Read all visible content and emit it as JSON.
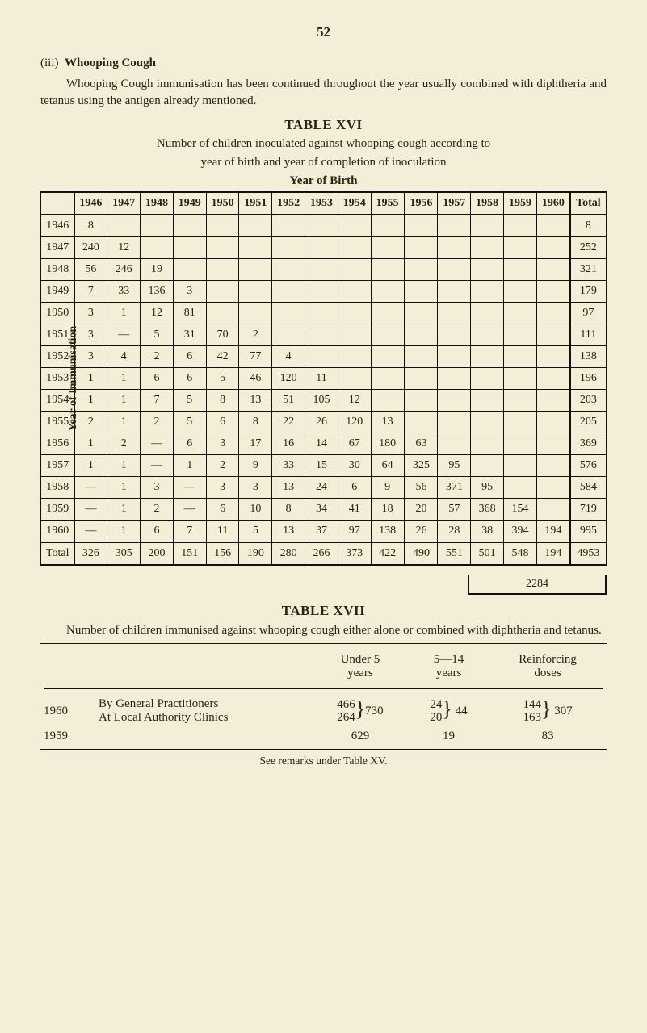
{
  "page_number": "52",
  "section_heading_num": "(iii)",
  "section_heading_text": "Whooping Cough",
  "intro_para": "Whooping Cough immunisation has been continued throughout the year usually combined with diphtheria and tetanus using the antigen already mentioned.",
  "table16": {
    "title": "TABLE XVI",
    "caption_l1": "Number of children inoculated against whooping cough according to",
    "caption_l2": "year of birth and year of completion of inoculation",
    "col_axis_label": "Year of Birth",
    "row_axis_label": "Year of Immunisation",
    "col_headers": [
      "1946",
      "1947",
      "1948",
      "1949",
      "1950",
      "1951",
      "1952",
      "1953",
      "1954",
      "1955",
      "1956",
      "1957",
      "1958",
      "1959",
      "1960",
      "Total"
    ],
    "row_labels": [
      "1946",
      "1947",
      "1948",
      "1949",
      "1950",
      "1951",
      "1952",
      "1953",
      "1954",
      "1955",
      "1956",
      "1957",
      "1958",
      "1959",
      "1960",
      "Total"
    ],
    "rows": [
      [
        "8",
        "",
        "",
        "",
        "",
        "",
        "",
        "",
        "",
        "",
        "",
        "",
        "",
        "",
        "",
        "8"
      ],
      [
        "240",
        "12",
        "",
        "",
        "",
        "",
        "",
        "",
        "",
        "",
        "",
        "",
        "",
        "",
        "",
        "252"
      ],
      [
        "56",
        "246",
        "19",
        "",
        "",
        "",
        "",
        "",
        "",
        "",
        "",
        "",
        "",
        "",
        "",
        "321"
      ],
      [
        "7",
        "33",
        "136",
        "3",
        "",
        "",
        "",
        "",
        "",
        "",
        "",
        "",
        "",
        "",
        "",
        "179"
      ],
      [
        "3",
        "1",
        "12",
        "81",
        "",
        "",
        "",
        "",
        "",
        "",
        "",
        "",
        "",
        "",
        "",
        "97"
      ],
      [
        "3",
        "—",
        "5",
        "31",
        "70",
        "2",
        "",
        "",
        "",
        "",
        "",
        "",
        "",
        "",
        "",
        "111"
      ],
      [
        "3",
        "4",
        "2",
        "6",
        "42",
        "77",
        "4",
        "",
        "",
        "",
        "",
        "",
        "",
        "",
        "",
        "138"
      ],
      [
        "1",
        "1",
        "6",
        "6",
        "5",
        "46",
        "120",
        "11",
        "",
        "",
        "",
        "",
        "",
        "",
        "",
        "196"
      ],
      [
        "1",
        "1",
        "7",
        "5",
        "8",
        "13",
        "51",
        "105",
        "12",
        "",
        "",
        "",
        "",
        "",
        "",
        "203"
      ],
      [
        "2",
        "1",
        "2",
        "5",
        "6",
        "8",
        "22",
        "26",
        "120",
        "13",
        "",
        "",
        "",
        "",
        "",
        "205"
      ],
      [
        "1",
        "2",
        "—",
        "6",
        "3",
        "17",
        "16",
        "14",
        "67",
        "180",
        "63",
        "",
        "",
        "",
        "",
        "369"
      ],
      [
        "1",
        "1",
        "—",
        "1",
        "2",
        "9",
        "33",
        "15",
        "30",
        "64",
        "325",
        "95",
        "",
        "",
        "",
        "576"
      ],
      [
        "—",
        "1",
        "3",
        "—",
        "3",
        "3",
        "13",
        "24",
        "6",
        "9",
        "56",
        "371",
        "95",
        "",
        "",
        "584"
      ],
      [
        "—",
        "1",
        "2",
        "—",
        "6",
        "10",
        "8",
        "34",
        "41",
        "18",
        "20",
        "57",
        "368",
        "154",
        "",
        "719"
      ],
      [
        "—",
        "1",
        "6",
        "7",
        "11",
        "5",
        "13",
        "37",
        "97",
        "138",
        "26",
        "28",
        "38",
        "394",
        "194",
        "995"
      ],
      [
        "326",
        "305",
        "200",
        "151",
        "156",
        "190",
        "280",
        "266",
        "373",
        "422",
        "490",
        "551",
        "501",
        "548",
        "194",
        "4953"
      ]
    ],
    "sum_box": "2284"
  },
  "table17": {
    "title": "TABLE XVII",
    "caption": "Number of children immunised against whooping cough either alone or combined with diphtheria and tetanus.",
    "header": {
      "c1": "Under 5",
      "c1b": "years",
      "c2": "5—14",
      "c2b": "years",
      "c3": "Reinforcing",
      "c3b": "doses"
    },
    "rows": [
      {
        "year": "1960",
        "desc1": "By General Practitioners",
        "desc2": "At Local Authority Clinics",
        "a1": "466",
        "a2": "264",
        "a_sum": "730",
        "b1": "24",
        "b2": "20",
        "b_sum": "44",
        "c1": "144",
        "c2": "163",
        "c_sum": "307"
      },
      {
        "year": "1959",
        "a": "629",
        "b": "19",
        "c": "83"
      }
    ],
    "footnote": "See remarks under Table XV."
  },
  "style": {
    "bg": "#f4edd8",
    "text": "#2a2416",
    "rule": "#111111",
    "body_font_size": 15,
    "table_font_size": 14,
    "heading_font_size": 17
  }
}
